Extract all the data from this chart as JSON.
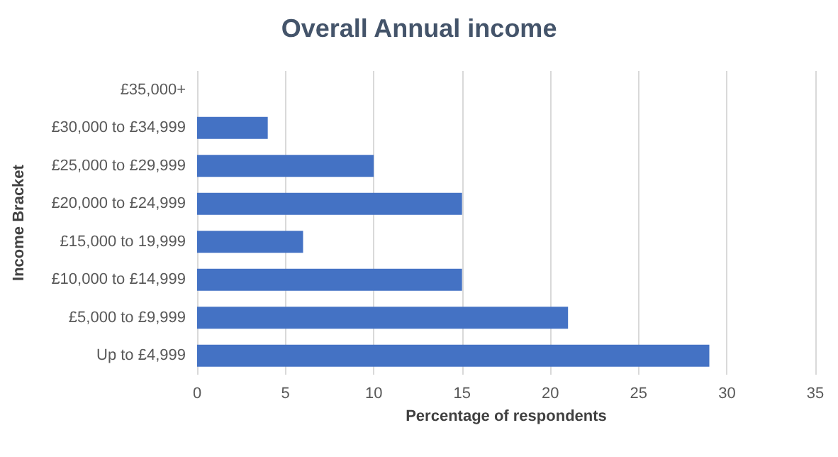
{
  "chart_data": {
    "type": "bar",
    "orientation": "horizontal",
    "title": "Overall Annual income",
    "xlabel": "Percentage of respondents",
    "ylabel": "Income Bracket",
    "categories": [
      "£35,000+",
      "£30,000 to £34,999",
      "£25,000 to £29,999",
      "£20,000 to £24,999",
      "£15,000 to 19,999",
      "£10,000 to £14,999",
      "£5,000 to £9,999",
      "Up to £4,999"
    ],
    "values": [
      0,
      4,
      10,
      15,
      6,
      15,
      21,
      29
    ],
    "color": "#4472c4",
    "xlim": [
      0,
      35
    ],
    "xticks": [
      0,
      5,
      10,
      15,
      20,
      25,
      30,
      35
    ],
    "grid": "x"
  }
}
